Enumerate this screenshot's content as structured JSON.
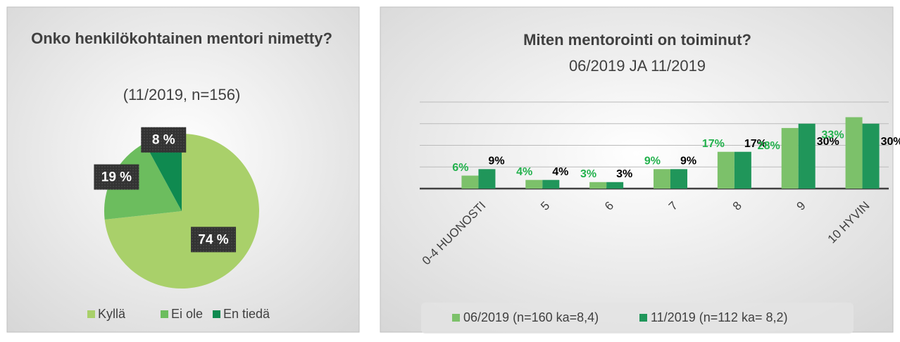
{
  "chart_data": [
    {
      "type": "pie",
      "title": "Onko henkilökohtainen mentori nimetty?",
      "subtitle": "(11/2019, n=156)",
      "categories": [
        "Kyllä",
        "Ei ole",
        "En tiedä"
      ],
      "values": [
        74,
        19,
        8
      ],
      "value_labels": [
        "74 %",
        "19 %",
        "8 %"
      ],
      "colors": [
        "#a9d06a",
        "#6cbd5e",
        "#0f8a50"
      ],
      "legend": "bottom"
    },
    {
      "type": "bar",
      "title": "Miten mentorointi on toiminut?",
      "subtitle": "06/2019 JA  11/2019",
      "categories": [
        "0-4 HUONOSTI",
        "5",
        "6",
        "7",
        "8",
        "9",
        "10 HYVIN"
      ],
      "series": [
        {
          "name": "06/2019 (n=160 ka=8,4)",
          "color": "#7cc16a",
          "label_color": "#22b14c",
          "values": [
            6,
            4,
            3,
            9,
            17,
            28,
            33
          ],
          "value_labels": [
            "6%",
            "4%",
            "3%",
            "9%",
            "17%",
            "28%",
            "33%"
          ]
        },
        {
          "name": "11/2019 (n=112 ka= 8,2)",
          "color": "#20965a",
          "label_color": "#000000",
          "values": [
            9,
            4,
            3,
            9,
            17,
            30,
            30
          ],
          "value_labels": [
            "9%",
            "4%",
            "3%",
            "9%",
            "17%",
            "30%",
            "30%"
          ]
        }
      ],
      "ylim": [
        0,
        40
      ],
      "yticks": [
        0,
        10,
        20,
        30,
        40
      ],
      "grid": true,
      "legend": "bottom"
    }
  ]
}
